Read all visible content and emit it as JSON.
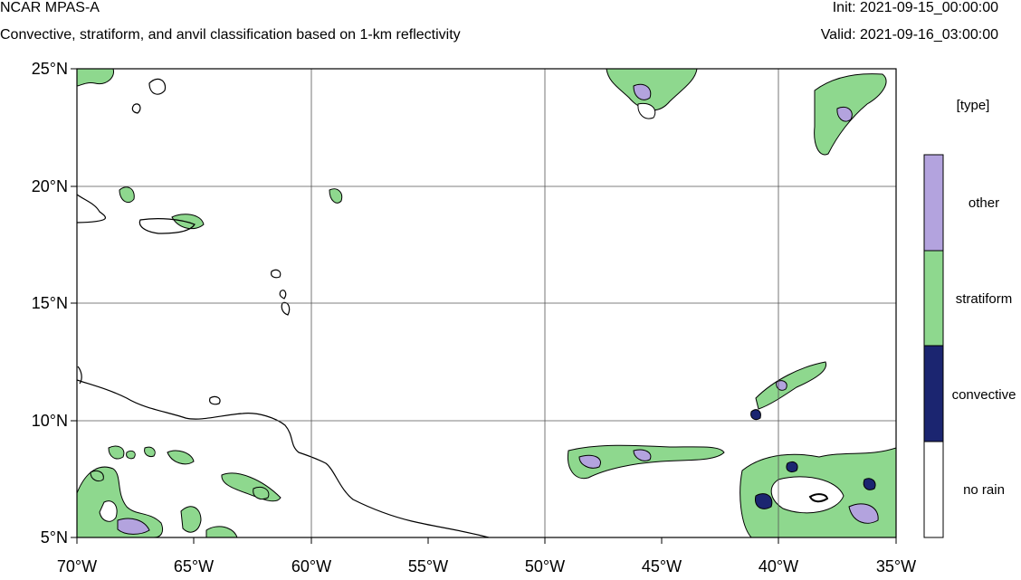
{
  "header": {
    "title": "NCAR MPAS-A",
    "subtitle": "Convective, stratiform, and anvil classification based on 1-km reflectivity",
    "init": "Init: 2021-09-15_00:00:00",
    "valid": "Valid: 2021-09-16_03:00:00"
  },
  "axes": {
    "lat_ticks": [
      "25°N",
      "20°N",
      "15°N",
      "10°N",
      "5°N"
    ],
    "lon_ticks": [
      "70°W",
      "65°W",
      "60°W",
      "55°W",
      "50°W",
      "45°W",
      "40°W",
      "35°W"
    ]
  },
  "legend": {
    "title": "[type]",
    "items": [
      {
        "label": "other",
        "color": "#b3a3de"
      },
      {
        "label": "stratiform",
        "color": "#8ed88e"
      },
      {
        "label": "convective",
        "color": "#1b2570"
      },
      {
        "label": "no rain",
        "color": "#ffffff"
      }
    ]
  },
  "colors": {
    "stratiform": "#8ed88e",
    "other": "#b3a3de",
    "convective": "#1b2570",
    "contour": "#000000",
    "gridline": "#555555"
  }
}
